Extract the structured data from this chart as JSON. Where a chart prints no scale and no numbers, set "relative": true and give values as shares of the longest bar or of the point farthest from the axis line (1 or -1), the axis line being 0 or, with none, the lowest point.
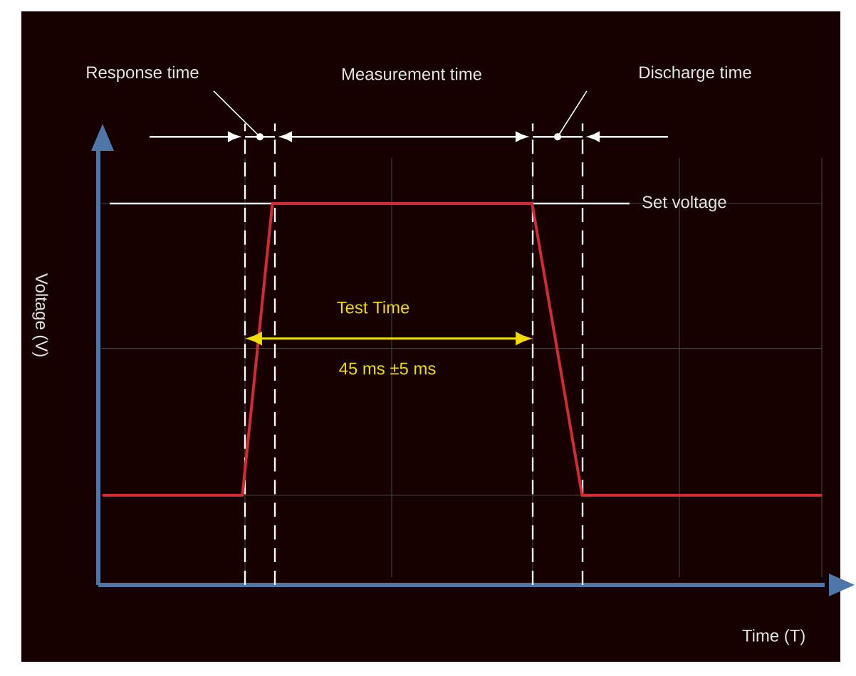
{
  "chart_data": {
    "type": "line",
    "relative": true,
    "xlabel": "Time (T)",
    "ylabel": "Voltage (V)",
    "categories": [
      null,
      null,
      null,
      null,
      null,
      null,
      null,
      null,
      null,
      null,
      null,
      null,
      null,
      null,
      null,
      null,
      null,
      null,
      null,
      null,
      null,
      null,
      null,
      null,
      null,
      null,
      null,
      null,
      null,
      null,
      null,
      null,
      null,
      null,
      null,
      null,
      null,
      null,
      null,
      null,
      null,
      null,
      null,
      null,
      null,
      null,
      null,
      null,
      null,
      null,
      null,
      null,
      null,
      null,
      null,
      null,
      null,
      null,
      null,
      null,
      null,
      null,
      null,
      null,
      null,
      null,
      null,
      null,
      null,
      null,
      null,
      null,
      null
    ],
    "series": [
      {
        "color": "#d42a32",
        "values": [
          0.235,
          0.235,
          0.235,
          0.235,
          0.235,
          0.235,
          0.235,
          0.235,
          0.235,
          0.235,
          0.235,
          0.235,
          0.235,
          0.235,
          0.235,
          0.49,
          0.745,
          1,
          1,
          1,
          1,
          1,
          1,
          1,
          1,
          1,
          1,
          1,
          1,
          1,
          1,
          1,
          1,
          1,
          1,
          1,
          1,
          1,
          1,
          1,
          1,
          1,
          1,
          1,
          0.847,
          0.694,
          0.541,
          0.388,
          0.235,
          0.235,
          0.235,
          0.235,
          0.235,
          0.235,
          0.235,
          0.235,
          0.235,
          0.235,
          0.235,
          0.235,
          0.235,
          0.235,
          0.235,
          0.235,
          0.235,
          0.235,
          0.235,
          0.235,
          0.235,
          0.235,
          0.235,
          0.235,
          0.235
        ]
      }
    ],
    "grid": true,
    "ref_lines": [
      {
        "axis": "y",
        "value": 1,
        "label": "Set voltage",
        "color": "#ffffff",
        "line_style": "solid"
      }
    ],
    "annotations": [
      "Response time",
      "Measurement time",
      "Discharge time",
      "Test Time",
      "45 ms ±5 ms"
    ]
  }
}
